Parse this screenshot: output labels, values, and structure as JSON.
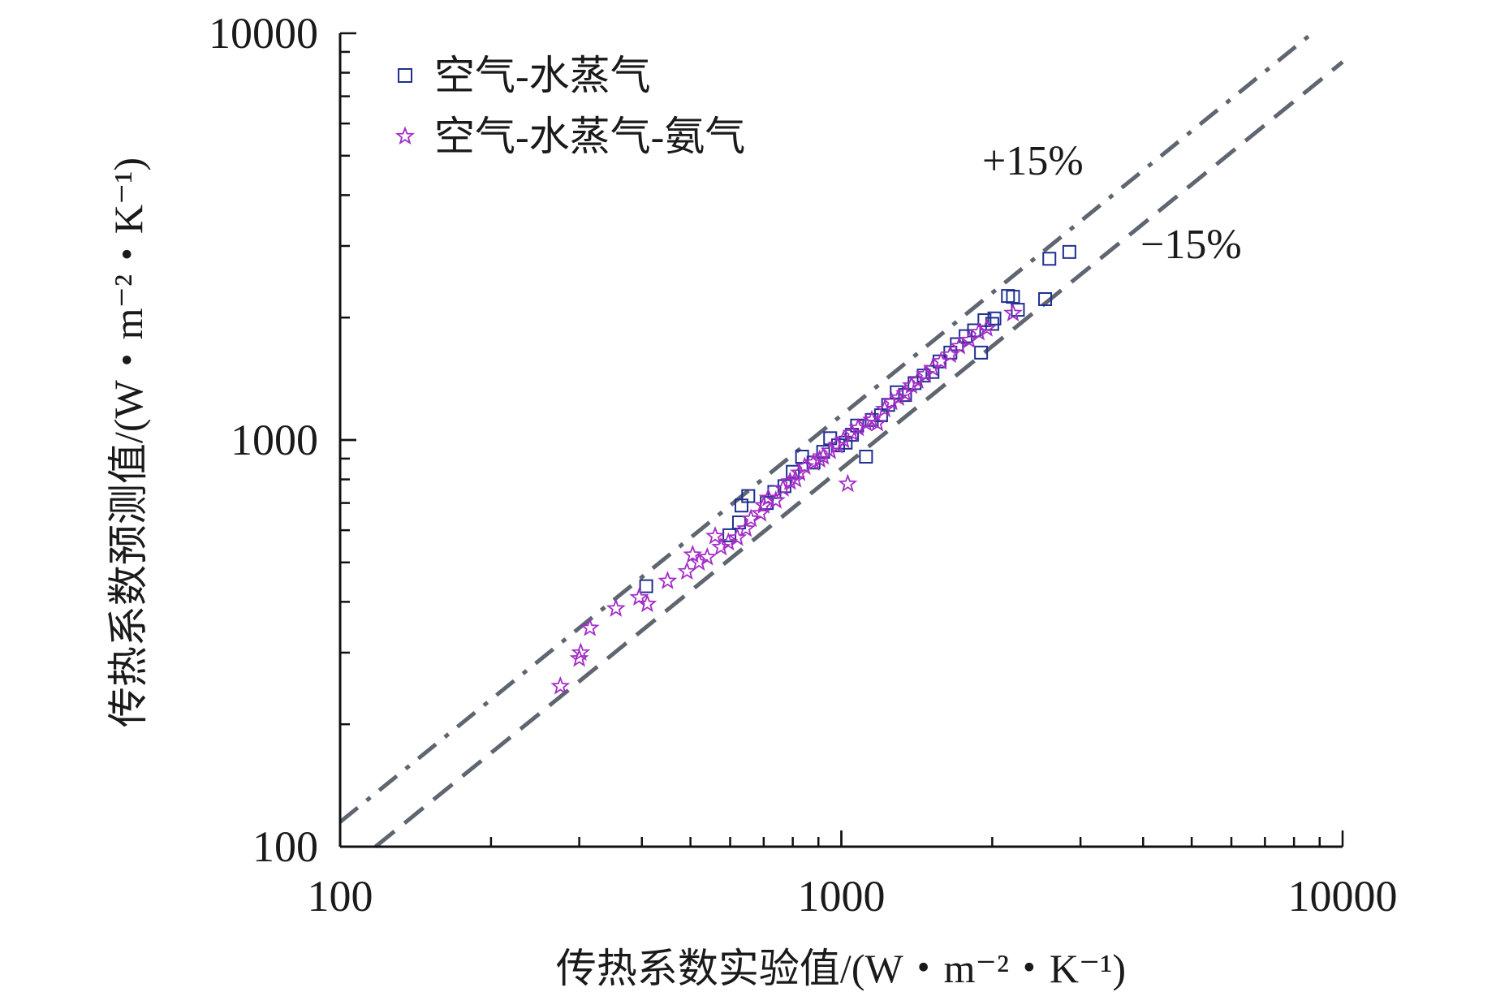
{
  "chart_data": {
    "type": "scatter",
    "xscale": "log",
    "yscale": "log",
    "xlim": [
      100,
      10000
    ],
    "ylim": [
      100,
      10000
    ],
    "xlabel": "传热系数实验值/(W・m⁻²・K⁻¹)",
    "ylabel": "传热系数预测值/(W・m⁻²・K⁻¹)",
    "x_tick_labels": [
      "100",
      "1000",
      "10000"
    ],
    "y_tick_labels": [
      "100",
      "1000",
      "10000"
    ],
    "grid": false,
    "legend_position": "top-left",
    "reference_lines": [
      {
        "label": "+15%",
        "factor": 1.15,
        "style": "dash-dot",
        "color": "#5f6670"
      },
      {
        "label": "−15%",
        "factor": 0.85,
        "style": "dashed",
        "color": "#5f6670"
      }
    ],
    "series": [
      {
        "name": "空气-水蒸气",
        "marker": "square",
        "color": "#1f2f8f",
        "points": [
          [
            408,
            437
          ],
          [
            598,
            583
          ],
          [
            625,
            627
          ],
          [
            632,
            690
          ],
          [
            652,
            728
          ],
          [
            710,
            700
          ],
          [
            735,
            745
          ],
          [
            770,
            770
          ],
          [
            800,
            835
          ],
          [
            835,
            910
          ],
          [
            880,
            880
          ],
          [
            920,
            935
          ],
          [
            950,
            1010
          ],
          [
            985,
            970
          ],
          [
            1020,
            985
          ],
          [
            1050,
            1030
          ],
          [
            1075,
            1085
          ],
          [
            1120,
            910
          ],
          [
            1150,
            1120
          ],
          [
            1200,
            1150
          ],
          [
            1240,
            1220
          ],
          [
            1290,
            1310
          ],
          [
            1340,
            1290
          ],
          [
            1400,
            1380
          ],
          [
            1460,
            1440
          ],
          [
            1520,
            1470
          ],
          [
            1570,
            1560
          ],
          [
            1650,
            1640
          ],
          [
            1700,
            1720
          ],
          [
            1770,
            1800
          ],
          [
            1840,
            1860
          ],
          [
            1900,
            1640
          ],
          [
            1930,
            1970
          ],
          [
            2000,
            1930
          ],
          [
            2020,
            1990
          ],
          [
            2150,
            2260
          ],
          [
            2200,
            2250
          ],
          [
            2250,
            2090
          ],
          [
            2550,
            2220
          ],
          [
            2600,
            2790
          ],
          [
            2850,
            2900
          ]
        ]
      },
      {
        "name": "空气-水蒸气-氨气",
        "marker": "star",
        "color": "#a32dc6",
        "points": [
          [
            275,
            248
          ],
          [
            300,
            290
          ],
          [
            302,
            300
          ],
          [
            315,
            345
          ],
          [
            355,
            385
          ],
          [
            395,
            410
          ],
          [
            410,
            395
          ],
          [
            450,
            450
          ],
          [
            492,
            475
          ],
          [
            505,
            522
          ],
          [
            520,
            500
          ],
          [
            540,
            515
          ],
          [
            560,
            580
          ],
          [
            575,
            545
          ],
          [
            595,
            560
          ],
          [
            620,
            575
          ],
          [
            645,
            605
          ],
          [
            660,
            640
          ],
          [
            690,
            660
          ],
          [
            700,
            690
          ],
          [
            715,
            720
          ],
          [
            740,
            710
          ],
          [
            765,
            760
          ],
          [
            790,
            790
          ],
          [
            810,
            800
          ],
          [
            825,
            830
          ],
          [
            845,
            860
          ],
          [
            880,
            880
          ],
          [
            905,
            895
          ],
          [
            920,
            910
          ],
          [
            950,
            940
          ],
          [
            980,
            970
          ],
          [
            1010,
            1000
          ],
          [
            1030,
            780
          ],
          [
            1050,
            1040
          ],
          [
            1080,
            1070
          ],
          [
            1120,
            1100
          ],
          [
            1150,
            1120
          ],
          [
            1180,
            1100
          ],
          [
            1220,
            1190
          ],
          [
            1260,
            1240
          ],
          [
            1300,
            1270
          ],
          [
            1340,
            1300
          ],
          [
            1380,
            1360
          ],
          [
            1420,
            1400
          ],
          [
            1470,
            1450
          ],
          [
            1520,
            1500
          ],
          [
            1580,
            1560
          ],
          [
            1650,
            1620
          ],
          [
            1720,
            1700
          ],
          [
            1800,
            1760
          ],
          [
            1880,
            1840
          ],
          [
            1950,
            1880
          ],
          [
            2200,
            2050
          ]
        ]
      }
    ]
  }
}
